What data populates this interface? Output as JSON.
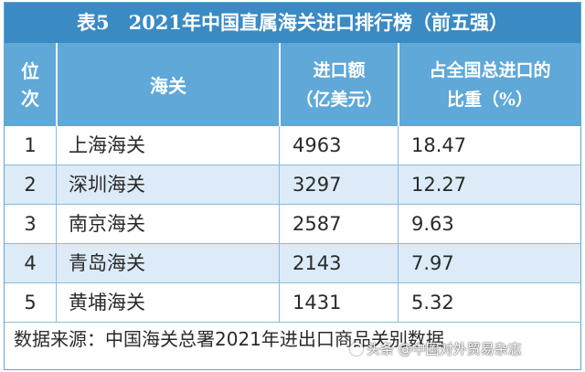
{
  "title": "表5　2021年中国直属海关进口排行榜（前五强）",
  "header": {
    "rank_line1": "位",
    "rank_line2": "次",
    "name": "海关",
    "value_line1": "进口额",
    "value_line2": "（亿美元）",
    "share_line1": "占全国总进口的",
    "share_line2": "比重（%）"
  },
  "rows": [
    {
      "rank": "1",
      "name": "上海海关",
      "value": "4963",
      "share": "18.47"
    },
    {
      "rank": "2",
      "name": "深圳海关",
      "value": "3297",
      "share": "12.27"
    },
    {
      "rank": "3",
      "name": "南京海关",
      "value": "2587",
      "share": "9.63"
    },
    {
      "rank": "4",
      "name": "青岛海关",
      "value": "2143",
      "share": "7.97"
    },
    {
      "rank": "5",
      "name": "黄埔海关",
      "value": "1431",
      "share": "5.32"
    }
  ],
  "source": "数据来源：中国海关总署2021年进出口商品关别数据",
  "watermark": "头条 @中国对外贸易杂志",
  "colors": {
    "title_bg": "#3a8ac4",
    "header_bg": "#5fa8d8",
    "alt_row_bg": "#dcebf7",
    "grid_line": "#86bde2"
  }
}
